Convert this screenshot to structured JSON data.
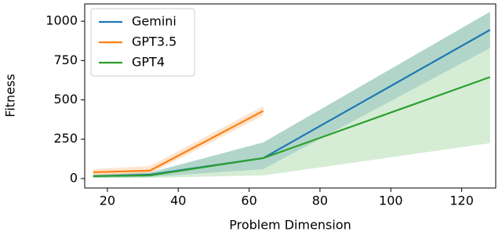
{
  "chart_data": {
    "type": "line",
    "xlabel": "Problem Dimension",
    "ylabel": "Fitness",
    "x": [
      16,
      32,
      64,
      128
    ],
    "series": [
      {
        "name": "Gemini",
        "color": "#1f77b4",
        "values": [
          15,
          25,
          130,
          945
        ],
        "lower": [
          5,
          10,
          60,
          830
        ],
        "upper": [
          25,
          40,
          230,
          1060
        ]
      },
      {
        "name": "GPT3.5",
        "color": "#ff7f0e",
        "values": [
          40,
          50,
          430,
          null
        ],
        "lower": [
          20,
          30,
          400,
          null
        ],
        "upper": [
          60,
          80,
          460,
          null
        ]
      },
      {
        "name": "GPT4",
        "color": "#2ca02c",
        "values": [
          15,
          20,
          130,
          645
        ],
        "lower": [
          5,
          5,
          20,
          225
        ],
        "upper": [
          25,
          35,
          230,
          1060
        ]
      }
    ],
    "xlim": [
      13.6,
      129.6
    ],
    "ylim": [
      -60,
      1110
    ],
    "xticks": [
      20,
      40,
      60,
      80,
      100,
      120
    ],
    "yticks": [
      0,
      250,
      500,
      750,
      1000
    ],
    "legend": "upper left"
  }
}
